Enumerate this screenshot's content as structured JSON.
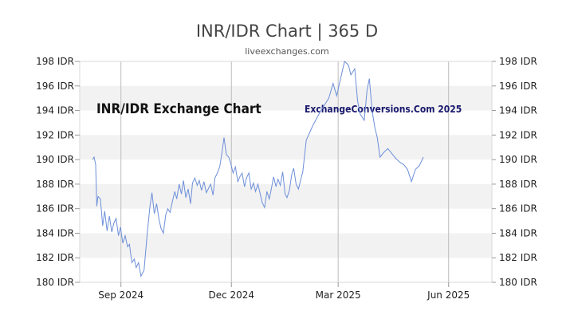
{
  "chart_data": {
    "type": "line",
    "title": "INR/IDR Chart | 365 D",
    "subtitle": "liveexchanges.com",
    "watermark_left": "INR/IDR Exchange Chart",
    "watermark_right": "ExchangeConversions.Com 2025",
    "y_unit": "IDR",
    "ylim": [
      180,
      198
    ],
    "y_ticks": [
      180,
      182,
      184,
      186,
      188,
      190,
      192,
      194,
      196,
      198
    ],
    "y_tick_labels": [
      "180 IDR",
      "182 IDR",
      "184 IDR",
      "186 IDR",
      "188 IDR",
      "190 IDR",
      "192 IDR",
      "194 IDR",
      "196 IDR",
      "198 IDR"
    ],
    "x_ticks": [
      {
        "label": "Sep 2024",
        "t": 0.1
      },
      {
        "label": "Dec 2024",
        "t": 0.368
      },
      {
        "label": "Mar 2025",
        "t": 0.627
      },
      {
        "label": "Jun 2025",
        "t": 0.895
      }
    ],
    "grid": true,
    "line_color": "#6d8fd9",
    "band_color": "#f2f2f2",
    "series": [
      {
        "name": "INR/IDR",
        "points": [
          [
            0.0,
            190.0
          ],
          [
            0.004,
            190.2
          ],
          [
            0.008,
            189.6
          ],
          [
            0.011,
            186.2
          ],
          [
            0.014,
            187.0
          ],
          [
            0.02,
            186.8
          ],
          [
            0.026,
            184.6
          ],
          [
            0.031,
            185.8
          ],
          [
            0.037,
            184.2
          ],
          [
            0.043,
            185.4
          ],
          [
            0.049,
            184.1
          ],
          [
            0.054,
            184.8
          ],
          [
            0.06,
            185.2
          ],
          [
            0.066,
            183.8
          ],
          [
            0.071,
            184.5
          ],
          [
            0.077,
            183.2
          ],
          [
            0.083,
            183.8
          ],
          [
            0.089,
            182.9
          ],
          [
            0.094,
            183.1
          ],
          [
            0.1,
            181.6
          ],
          [
            0.106,
            181.9
          ],
          [
            0.111,
            181.2
          ],
          [
            0.117,
            181.6
          ],
          [
            0.123,
            180.5
          ],
          [
            0.131,
            181.0
          ],
          [
            0.139,
            184.0
          ],
          [
            0.146,
            186.2
          ],
          [
            0.151,
            187.3
          ],
          [
            0.157,
            185.6
          ],
          [
            0.163,
            186.4
          ],
          [
            0.169,
            185.1
          ],
          [
            0.174,
            184.4
          ],
          [
            0.18,
            184.0
          ],
          [
            0.186,
            185.5
          ],
          [
            0.191,
            186.0
          ],
          [
            0.197,
            185.7
          ],
          [
            0.203,
            186.6
          ],
          [
            0.209,
            187.4
          ],
          [
            0.214,
            186.8
          ],
          [
            0.22,
            188.0
          ],
          [
            0.226,
            187.2
          ],
          [
            0.231,
            188.3
          ],
          [
            0.237,
            186.9
          ],
          [
            0.243,
            187.6
          ],
          [
            0.249,
            186.4
          ],
          [
            0.254,
            188.1
          ],
          [
            0.26,
            188.5
          ],
          [
            0.266,
            187.9
          ],
          [
            0.271,
            188.3
          ],
          [
            0.277,
            187.5
          ],
          [
            0.283,
            188.2
          ],
          [
            0.289,
            187.3
          ],
          [
            0.294,
            187.6
          ],
          [
            0.3,
            188.0
          ],
          [
            0.306,
            187.1
          ],
          [
            0.311,
            188.5
          ],
          [
            0.317,
            188.9
          ],
          [
            0.323,
            189.4
          ],
          [
            0.329,
            190.6
          ],
          [
            0.334,
            191.8
          ],
          [
            0.34,
            190.4
          ],
          [
            0.346,
            190.2
          ],
          [
            0.351,
            189.7
          ],
          [
            0.357,
            188.9
          ],
          [
            0.363,
            189.4
          ],
          [
            0.369,
            188.2
          ],
          [
            0.374,
            188.6
          ],
          [
            0.38,
            188.9
          ],
          [
            0.386,
            187.8
          ],
          [
            0.391,
            188.5
          ],
          [
            0.397,
            188.9
          ],
          [
            0.403,
            187.6
          ],
          [
            0.409,
            188.1
          ],
          [
            0.414,
            187.4
          ],
          [
            0.42,
            188.0
          ],
          [
            0.426,
            187.2
          ],
          [
            0.431,
            186.5
          ],
          [
            0.437,
            186.1
          ],
          [
            0.443,
            187.4
          ],
          [
            0.449,
            186.8
          ],
          [
            0.454,
            187.6
          ],
          [
            0.46,
            188.6
          ],
          [
            0.466,
            187.8
          ],
          [
            0.471,
            188.4
          ],
          [
            0.477,
            187.9
          ],
          [
            0.483,
            189.0
          ],
          [
            0.489,
            187.2
          ],
          [
            0.494,
            186.9
          ],
          [
            0.5,
            187.5
          ],
          [
            0.506,
            188.8
          ],
          [
            0.511,
            189.3
          ],
          [
            0.517,
            188.0
          ],
          [
            0.523,
            187.6
          ],
          [
            0.529,
            188.4
          ],
          [
            0.534,
            189.0
          ],
          [
            0.543,
            191.6
          ],
          [
            0.56,
            192.8
          ],
          [
            0.58,
            194.0
          ],
          [
            0.6,
            195.0
          ],
          [
            0.611,
            196.2
          ],
          [
            0.62,
            195.2
          ],
          [
            0.63,
            196.6
          ],
          [
            0.64,
            198.0
          ],
          [
            0.65,
            197.7
          ],
          [
            0.656,
            196.9
          ],
          [
            0.666,
            197.4
          ],
          [
            0.673,
            194.8
          ],
          [
            0.68,
            193.7
          ],
          [
            0.69,
            193.2
          ],
          [
            0.697,
            195.6
          ],
          [
            0.703,
            196.6
          ],
          [
            0.71,
            194.0
          ],
          [
            0.717,
            192.6
          ],
          [
            0.723,
            191.8
          ],
          [
            0.73,
            190.2
          ],
          [
            0.74,
            190.6
          ],
          [
            0.75,
            190.9
          ],
          [
            0.76,
            190.5
          ],
          [
            0.77,
            190.1
          ],
          [
            0.78,
            189.8
          ],
          [
            0.79,
            189.6
          ],
          [
            0.8,
            189.2
          ],
          [
            0.81,
            188.2
          ],
          [
            0.82,
            189.2
          ],
          [
            0.83,
            189.5
          ],
          [
            0.84,
            190.2
          ]
        ]
      }
    ]
  }
}
